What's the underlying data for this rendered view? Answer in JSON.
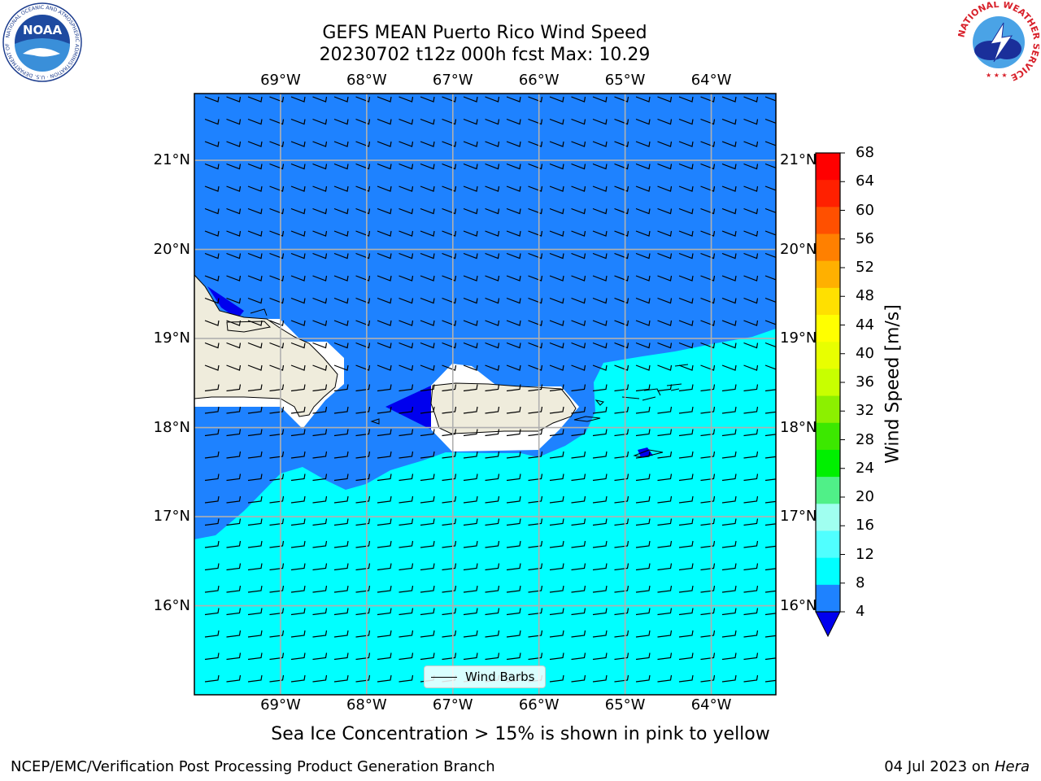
{
  "header": {
    "title_line1": "GEFS MEAN Puerto Rico Wind Speed",
    "title_line2": "20230702 t12z 000h fcst   Max: 10.29"
  },
  "logos": {
    "left_agency_text": "NOAA",
    "left_ring_text": "NATIONAL OCEANIC AND ATMOSPHERIC ADMINISTRATION · U.S. DEPARTMENT OF COMMERCE",
    "right_ring_text": "NATIONAL WEATHER SERVICE"
  },
  "map": {
    "lon_labels": [
      "69°W",
      "68°W",
      "67°W",
      "66°W",
      "65°W",
      "64°W"
    ],
    "lat_labels": [
      "21°N",
      "20°N",
      "19°N",
      "18°N",
      "17°N",
      "16°N"
    ],
    "lon_range": [
      -70.0,
      -63.25
    ],
    "lat_range": [
      15.0,
      21.75
    ],
    "legend_label": "Wind Barbs",
    "fill_colors": {
      "speed_4_8": "#1e82ff",
      "speed_8_12": "#00ffff",
      "speed_below_4": "#0000ee",
      "land": "#efecdc",
      "unfilled": "#ffffff"
    }
  },
  "colorbar": {
    "label": "Wind Speed [m/s]",
    "ticks": [
      "68",
      "64",
      "60",
      "56",
      "52",
      "48",
      "44",
      "40",
      "36",
      "32",
      "28",
      "24",
      "20",
      "16",
      "12",
      "8",
      "4"
    ],
    "levels_top_to_bottom": [
      "#ff0000",
      "#ff2000",
      "#ff5000",
      "#ff8000",
      "#ffb000",
      "#ffe000",
      "#ffff00",
      "#e8ff00",
      "#c8ff00",
      "#8cf000",
      "#3ce800",
      "#00f000",
      "#50f088",
      "#a0fff0",
      "#50ffff",
      "#00ffff",
      "#1e82ff"
    ],
    "under_color": "#0000ee"
  },
  "caption": "Sea Ice Concentration > 15% is shown in pink to yellow",
  "footer": {
    "left": "NCEP/EMC/Verification Post Processing Product Generation Branch",
    "right_date": "04 Jul 2023 on ",
    "right_host": "Hera"
  }
}
